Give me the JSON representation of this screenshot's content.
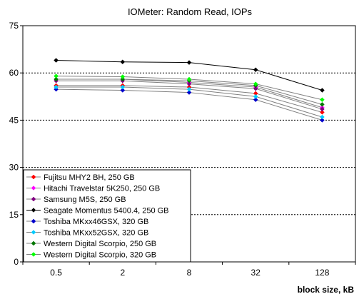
{
  "chart_data": {
    "type": "line",
    "title": "IOMeter: Random Read, IOPs",
    "xlabel": "block size, kB",
    "ylabel": "",
    "categories": [
      "0.5",
      "2",
      "8",
      "32",
      "128"
    ],
    "ylim": [
      0,
      75
    ],
    "yticks": [
      0,
      15,
      30,
      45,
      60,
      75
    ],
    "grid": "horizontal-dotted",
    "legend_position": "bottom-left",
    "series": [
      {
        "name": "Fujitsu MHY2 BH, 250 GB",
        "color": "#ff0000",
        "values": [
          56,
          56,
          55.5,
          53.5,
          47.5
        ]
      },
      {
        "name": "Hitachi Travelstar 5K250, 250 GB",
        "color": "#ff00ff",
        "values": [
          58,
          58,
          57,
          55.5,
          49
        ]
      },
      {
        "name": "Samsung M5S, 250 GB",
        "color": "#800080",
        "values": [
          57.5,
          57.5,
          56.5,
          55,
          48.5
        ]
      },
      {
        "name": "Seagate Momentus 5400.4, 250 GB",
        "color": "#000000",
        "values": [
          64,
          63.5,
          63.3,
          61,
          54.5
        ]
      },
      {
        "name": "Toshiba MKxx46GSX, 320 GB",
        "color": "#0000cc",
        "values": [
          54.8,
          54.5,
          53.8,
          51.5,
          45
        ]
      },
      {
        "name": "Toshiba MKxx52GSX, 320 GB",
        "color": "#00ccff",
        "values": [
          55.5,
          55.5,
          54.8,
          52.5,
          46
        ]
      },
      {
        "name": "Western Digital Scorpio, 250 GB",
        "color": "#007700",
        "values": [
          58,
          58,
          57.5,
          56,
          50
        ]
      },
      {
        "name": "Western Digital Scorpio, 320 GB",
        "color": "#00ff00",
        "values": [
          59,
          58.8,
          58,
          56.5,
          51.5
        ]
      }
    ]
  }
}
